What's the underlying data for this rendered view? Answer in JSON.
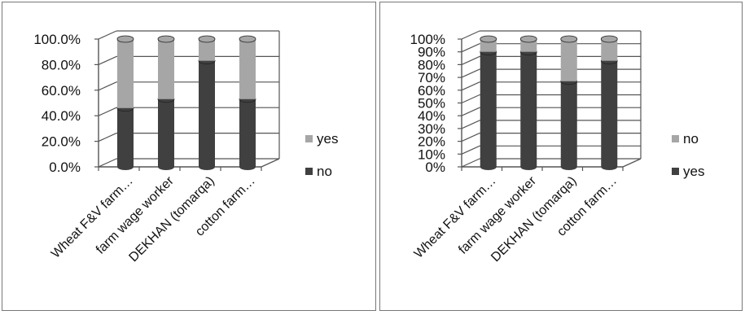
{
  "chart_data": [
    {
      "type": "bar",
      "stacked": true,
      "percent": true,
      "categories": [
        "Wheat F&V farm…",
        "farm wage worker",
        "DEKHAN (tomarqa)",
        "cotton farm…"
      ],
      "series": [
        {
          "name": "no",
          "values": [
            46,
            53,
            83,
            53
          ],
          "color": "#404040"
        },
        {
          "name": "yes",
          "values": [
            54,
            47,
            17,
            47
          ],
          "color": "#a6a6a6"
        }
      ],
      "yticks": [
        "0.0%",
        "20.0%",
        "40.0%",
        "60.0%",
        "80.0%",
        "100.0%"
      ],
      "ylim": [
        0,
        100
      ],
      "legend": {
        "position": "right",
        "items": [
          "yes",
          "no"
        ]
      },
      "title": "",
      "xlabel": "",
      "ylabel": ""
    },
    {
      "type": "bar",
      "stacked": true,
      "percent": true,
      "categories": [
        "Wheat F&V farm…",
        "farm wage worker",
        "DEKHAN (tomarqa)",
        "cotton farm…"
      ],
      "series": [
        {
          "name": "yes",
          "values": [
            90,
            90,
            67,
            83
          ],
          "color": "#404040"
        },
        {
          "name": "no",
          "values": [
            10,
            10,
            33,
            17
          ],
          "color": "#a6a6a6"
        }
      ],
      "yticks": [
        "0%",
        "10%",
        "20%",
        "30%",
        "40%",
        "50%",
        "60%",
        "70%",
        "80%",
        "90%",
        "100%"
      ],
      "ylim": [
        0,
        100
      ],
      "legend": {
        "position": "right",
        "items": [
          "no",
          "yes"
        ]
      },
      "title": "",
      "xlabel": "",
      "ylabel": ""
    }
  ]
}
